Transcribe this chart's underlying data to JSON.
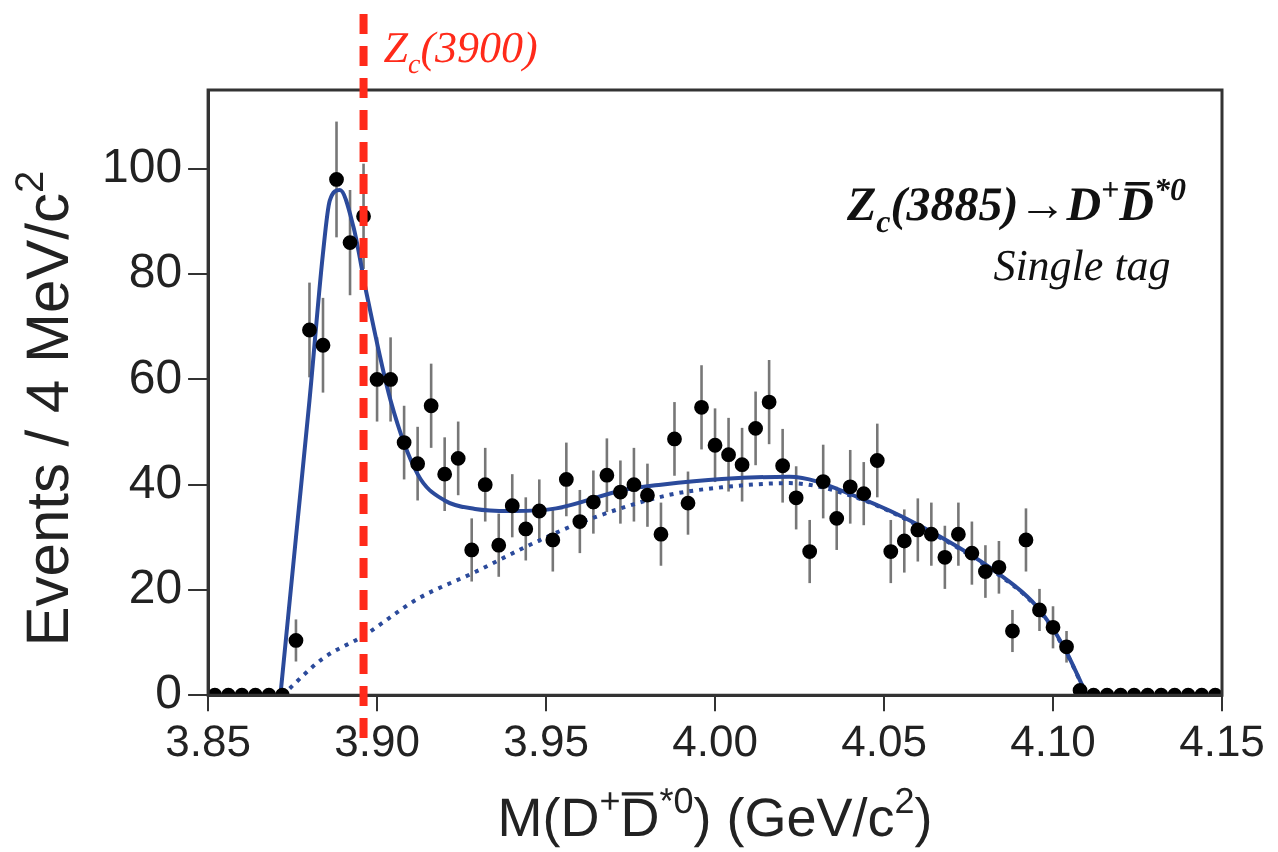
{
  "chart_data": {
    "type": "scatter",
    "xlabel": "M(D$^{+}$D̅$^{*0}$) (GeV/c$^{2}$)",
    "ylabel": "Events / 4 MeV/c$^{2}$",
    "annotations": [
      "Z$_{c}$(3885)→D$^{+}$D̅$^{*0}$",
      "Single tag"
    ],
    "xlim": [
      3.85,
      4.15
    ],
    "xticks": [
      {
        "value": 3.85,
        "label": "3.85"
      },
      {
        "value": 3.9,
        "label": "3.90"
      },
      {
        "value": 3.95,
        "label": "3.95"
      },
      {
        "value": 4.0,
        "label": "4.00"
      },
      {
        "value": 4.05,
        "label": "4.05"
      },
      {
        "value": 4.1,
        "label": "4.10"
      },
      {
        "value": 4.15,
        "label": "4.15"
      }
    ],
    "ylim": [
      0,
      115
    ],
    "yticks": [
      0,
      20,
      40,
      60,
      80,
      100
    ],
    "ref_lines": [
      {
        "axis": "x",
        "value": 3.896,
        "label": "Z$_{c}$(3900)",
        "color": "#ff2a1a",
        "line_style": "dashed"
      }
    ],
    "series": [
      {
        "type": "scatter",
        "color": "#000000",
        "marker": "circle",
        "x": [
          3.852,
          3.856,
          3.86,
          3.864,
          3.868,
          3.872,
          3.876,
          3.88,
          3.884,
          3.888,
          3.892,
          3.896,
          3.9,
          3.904,
          3.908,
          3.912,
          3.916,
          3.92,
          3.924,
          3.928,
          3.932,
          3.936,
          3.94,
          3.944,
          3.948,
          3.952,
          3.956,
          3.96,
          3.964,
          3.968,
          3.972,
          3.976,
          3.98,
          3.984,
          3.988,
          3.992,
          3.996,
          4.0,
          4.004,
          4.008,
          4.012,
          4.016,
          4.02,
          4.024,
          4.028,
          4.032,
          4.036,
          4.04,
          4.044,
          4.048,
          4.052,
          4.056,
          4.06,
          4.064,
          4.068,
          4.072,
          4.076,
          4.08,
          4.084,
          4.088,
          4.092,
          4.096,
          4.1,
          4.104,
          4.108,
          4.112,
          4.116,
          4.12,
          4.124,
          4.128,
          4.132,
          4.136,
          4.14,
          4.144,
          4.148
        ],
        "values": [
          0,
          0,
          0,
          0,
          0,
          0,
          10.4,
          69.4,
          66.5,
          98,
          86,
          91,
          60,
          60,
          48,
          44,
          55,
          42,
          45,
          27.6,
          40,
          28.5,
          36,
          31.6,
          35,
          29.5,
          41,
          33,
          36.7,
          41.8,
          38.6,
          40,
          38,
          30.6,
          48.7,
          36.5,
          54.7,
          47.5,
          45.7,
          43.8,
          50.7,
          55.7,
          43.6,
          37.5,
          27.3,
          40.6,
          33.6,
          39.6,
          38.3,
          44.6,
          27.3,
          29.3,
          31.4,
          30.6,
          26.2,
          30.6,
          27,
          23.5,
          24.3,
          12.2,
          29.5,
          16.2,
          12.9,
          9.2,
          0.9,
          0,
          0,
          0,
          0,
          0,
          0,
          0,
          0,
          0,
          0
        ],
        "errors": [
          null,
          null,
          null,
          null,
          null,
          null,
          4,
          9,
          9,
          11,
          10,
          10,
          8,
          8,
          7,
          7,
          8,
          7,
          7,
          6,
          7,
          6,
          6,
          6,
          6,
          6,
          7,
          6,
          6,
          7,
          6,
          7,
          6,
          6,
          7,
          6,
          8,
          7,
          7,
          7,
          7,
          8,
          7,
          6,
          6,
          7,
          6,
          7,
          6,
          7,
          6,
          6,
          6,
          6,
          6,
          6,
          6,
          5,
          5,
          4,
          6,
          4,
          4,
          3,
          1,
          null,
          null,
          null,
          null,
          null,
          null,
          null,
          null,
          null,
          null
        ]
      },
      {
        "type": "line",
        "color": "#2b4a9b",
        "marker": "none",
        "line_style": "solid",
        "x": [
          3.8714,
          3.876,
          3.88,
          3.884,
          3.886,
          3.889,
          3.893,
          3.897,
          3.904,
          3.912,
          3.92,
          3.929,
          3.94,
          3.953,
          3.973,
          3.984,
          4.002,
          4.022,
          4.042,
          4.063,
          4.083,
          4.095,
          4.103,
          4.11
        ],
        "values": [
          0,
          30,
          56,
          84,
          94,
          96,
          89,
          76,
          56,
          42,
          37,
          35.4,
          35,
          35.5,
          39,
          40,
          41.1,
          41.5,
          37.7,
          31.4,
          23.5,
          17,
          9.4,
          0
        ]
      },
      {
        "type": "line",
        "color": "#2b4a9b",
        "marker": "none",
        "line_style": "dotted",
        "x": [
          3.872,
          3.884,
          3.896,
          3.912,
          3.929,
          3.945,
          3.961,
          3.986,
          4.002,
          4.022,
          4.042,
          4.063,
          4.083,
          4.095,
          4.103,
          4.11
        ],
        "values": [
          0,
          7,
          11.3,
          18.3,
          23.4,
          28.5,
          33,
          38,
          39.5,
          40.3,
          37.5,
          31.2,
          23.3,
          16.8,
          9.2,
          0
        ]
      }
    ]
  }
}
